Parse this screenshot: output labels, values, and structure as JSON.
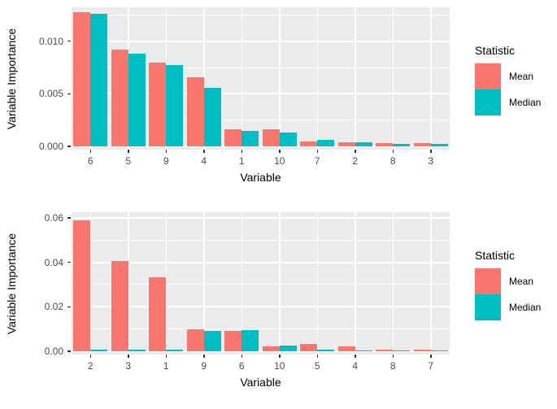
{
  "chart_data": [
    {
      "type": "bar",
      "panel": "top",
      "xlabel": "Variable",
      "ylabel": "Variable Importance",
      "legend_title": "Statistic",
      "legend_position": "right",
      "grid": true,
      "panel_bg": "#EBEBEB",
      "categories": [
        "6",
        "5",
        "9",
        "4",
        "1",
        "10",
        "7",
        "2",
        "8",
        "3"
      ],
      "series": [
        {
          "name": "Mean",
          "color": "#F8766D",
          "values": [
            0.0128,
            0.0092,
            0.008,
            0.0066,
            0.0016,
            0.0016,
            0.0005,
            0.0004,
            0.0003,
            0.0003
          ]
        },
        {
          "name": "Median",
          "color": "#00BFC4",
          "values": [
            0.0126,
            0.0088,
            0.0077,
            0.0056,
            0.0015,
            0.0013,
            0.0006,
            0.00035,
            0.0002,
            0.0002
          ]
        }
      ],
      "yticks": [
        {
          "label": "0.000",
          "value": 0
        },
        {
          "label": "0.005",
          "value": 0.005
        },
        {
          "label": "0.010",
          "value": 0.01
        }
      ],
      "minor_yticks": [
        0.0025,
        0.0075,
        0.0125
      ],
      "ylim": [
        0,
        0.01323
      ]
    },
    {
      "type": "bar",
      "panel": "bottom",
      "xlabel": "Variable",
      "ylabel": "Variable Importance",
      "legend_title": "Statistic",
      "legend_position": "right",
      "grid": true,
      "panel_bg": "#EBEBEB",
      "categories": [
        "2",
        "3",
        "1",
        "9",
        "6",
        "10",
        "5",
        "4",
        "8",
        "7"
      ],
      "series": [
        {
          "name": "Mean",
          "color": "#F8766D",
          "values": [
            0.059,
            0.0405,
            0.0333,
            0.0097,
            0.0093,
            0.0021,
            0.0034,
            0.0023,
            0.0009,
            0.0009
          ]
        },
        {
          "name": "Median",
          "color": "#00BFC4",
          "values": [
            0.0007,
            0.0007,
            0.0007,
            0.009,
            0.0094,
            0.0026,
            0.0008,
            0.0004,
            0.0004,
            0.0004
          ]
        }
      ],
      "yticks": [
        {
          "label": "0.00",
          "value": 0
        },
        {
          "label": "0.02",
          "value": 0.02
        },
        {
          "label": "0.04",
          "value": 0.04
        },
        {
          "label": "0.06",
          "value": 0.06
        }
      ],
      "minor_yticks": [
        0.01,
        0.03,
        0.05
      ],
      "ylim": [
        0,
        0.0625
      ]
    }
  ],
  "colors": {
    "mean": "#F8766D",
    "median": "#00BFC4",
    "panel_bg": "#EBEBEB",
    "gridline": "#FFFFFF",
    "axis_text": "#4D4D4D",
    "title_text": "#000000"
  }
}
